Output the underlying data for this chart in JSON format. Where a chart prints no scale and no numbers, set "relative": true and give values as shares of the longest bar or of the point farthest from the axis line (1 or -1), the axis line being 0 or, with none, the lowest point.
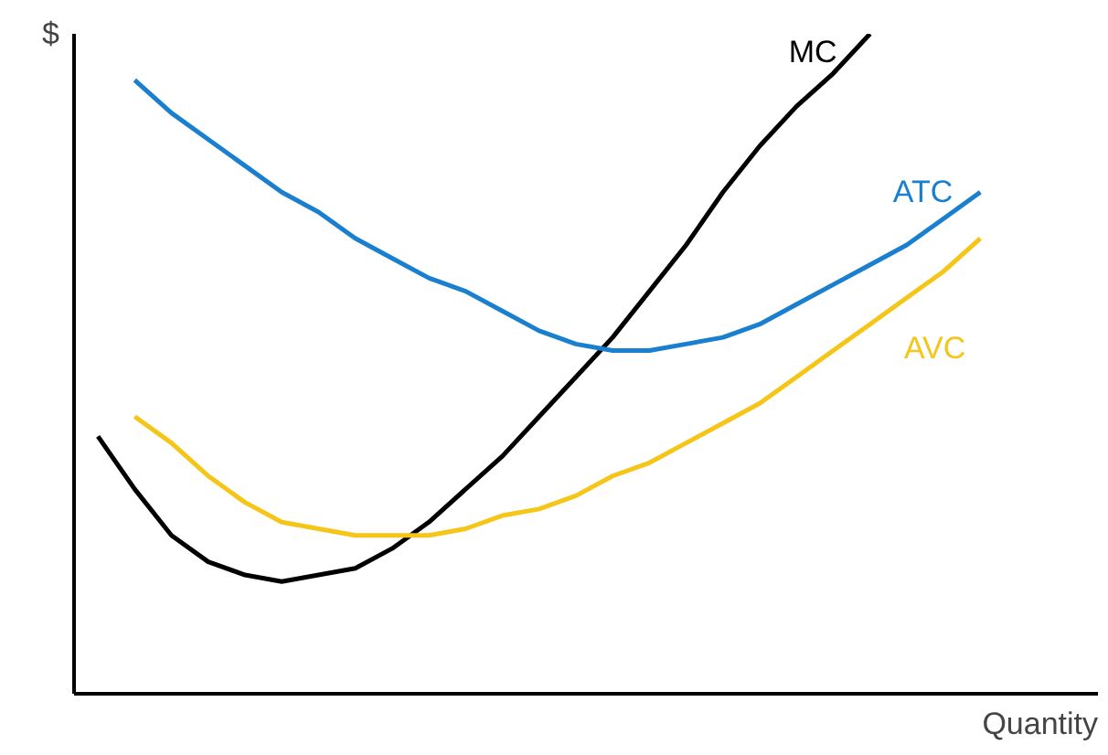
{
  "chart_data": {
    "type": "line",
    "relative": true,
    "xlabel": "Quantity",
    "ylabel": "$",
    "marker": "none",
    "line_style": "solid",
    "categories": [
      null,
      null,
      null,
      null,
      null,
      null,
      null,
      null,
      null,
      null,
      null,
      null,
      null,
      null,
      null,
      null,
      null,
      null,
      null,
      null,
      null,
      null,
      null,
      null,
      null
    ],
    "series": [
      {
        "name": "MC",
        "color": "#000000",
        "values": [
          0.39,
          0.31,
          0.24,
          0.2,
          0.18,
          0.17,
          0.18,
          0.19,
          0.22,
          0.26,
          0.31,
          0.36,
          0.42,
          0.48,
          0.54,
          0.61,
          0.68,
          0.76,
          0.83,
          0.89,
          0.94,
          1.0,
          null,
          null,
          null
        ]
      },
      {
        "name": "ATC",
        "color": "#1a7fcf",
        "values": [
          null,
          0.93,
          0.88,
          0.84,
          0.8,
          0.76,
          0.73,
          0.69,
          0.66,
          0.63,
          0.61,
          0.58,
          0.55,
          0.53,
          0.52,
          0.52,
          0.53,
          0.54,
          0.56,
          0.59,
          0.62,
          0.65,
          0.68,
          0.72,
          0.76
        ]
      },
      {
        "name": "AVC",
        "color": "#f5c518",
        "values": [
          null,
          0.42,
          0.38,
          0.33,
          0.29,
          0.26,
          0.25,
          0.24,
          0.24,
          0.24,
          0.25,
          0.27,
          0.28,
          0.3,
          0.33,
          0.35,
          0.38,
          0.41,
          0.44,
          0.48,
          0.52,
          0.56,
          0.6,
          0.64,
          0.69
        ]
      }
    ]
  }
}
